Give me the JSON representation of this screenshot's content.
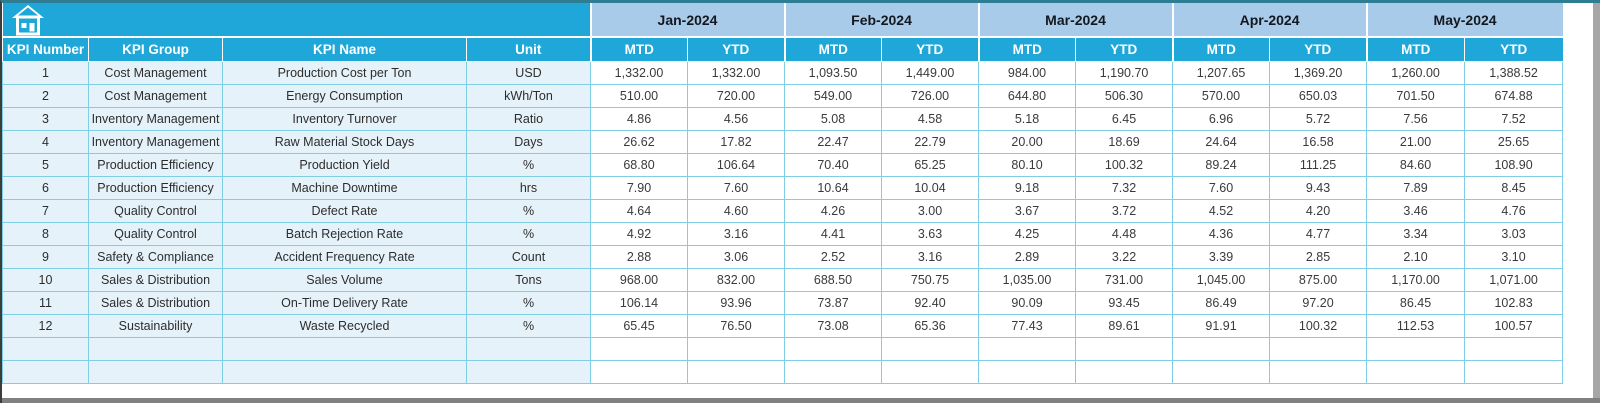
{
  "app": {
    "type": "spreadsheet-kpi-dashboard",
    "home_icon": "home-icon"
  },
  "colors": {
    "header_cyan": "#1ea7d8",
    "month_header_blue": "#a8cbea",
    "row_tint_blue": "#e6f2f9",
    "cell_border_cyan": "#7ecfe6",
    "header_text": "#ffffff",
    "data_text": "#3a3a3a",
    "frame_top": "#2f7d93",
    "frame_bottom_gray": "#808080"
  },
  "columns": {
    "kpi_number": "KPI Number",
    "kpi_group": "KPI Group",
    "kpi_name": "KPI Name",
    "unit": "Unit",
    "mtd": "MTD",
    "ytd": "YTD"
  },
  "months": [
    "Jan-2024",
    "Feb-2024",
    "Mar-2024",
    "Apr-2024",
    "May-2024"
  ],
  "rows": [
    {
      "number": "1",
      "group": "Cost Management",
      "name": "Production Cost per Ton",
      "unit": "USD",
      "values": [
        "1,332.00",
        "1,332.00",
        "1,093.50",
        "1,449.00",
        "984.00",
        "1,190.70",
        "1,207.65",
        "1,369.20",
        "1,260.00",
        "1,388.52"
      ]
    },
    {
      "number": "2",
      "group": "Cost Management",
      "name": "Energy Consumption",
      "unit": "kWh/Ton",
      "values": [
        "510.00",
        "720.00",
        "549.00",
        "726.00",
        "644.80",
        "506.30",
        "570.00",
        "650.03",
        "701.50",
        "674.88"
      ]
    },
    {
      "number": "3",
      "group": "Inventory Management",
      "name": "Inventory Turnover",
      "unit": "Ratio",
      "values": [
        "4.86",
        "4.56",
        "5.08",
        "4.58",
        "5.18",
        "6.45",
        "6.96",
        "5.72",
        "7.56",
        "7.52"
      ]
    },
    {
      "number": "4",
      "group": "Inventory Management",
      "name": "Raw Material Stock Days",
      "unit": "Days",
      "values": [
        "26.62",
        "17.82",
        "22.47",
        "22.79",
        "20.00",
        "18.69",
        "24.64",
        "16.58",
        "21.00",
        "25.65"
      ]
    },
    {
      "number": "5",
      "group": "Production Efficiency",
      "name": "Production Yield",
      "unit": "%",
      "values": [
        "68.80",
        "106.64",
        "70.40",
        "65.25",
        "80.10",
        "100.32",
        "89.24",
        "111.25",
        "84.60",
        "108.90"
      ]
    },
    {
      "number": "6",
      "group": "Production Efficiency",
      "name": "Machine Downtime",
      "unit": "hrs",
      "values": [
        "7.90",
        "7.60",
        "10.64",
        "10.04",
        "9.18",
        "7.32",
        "7.60",
        "9.43",
        "7.89",
        "8.45"
      ]
    },
    {
      "number": "7",
      "group": "Quality Control",
      "name": "Defect Rate",
      "unit": "%",
      "values": [
        "4.64",
        "4.60",
        "4.26",
        "3.00",
        "3.67",
        "3.72",
        "4.52",
        "4.20",
        "3.46",
        "4.76"
      ]
    },
    {
      "number": "8",
      "group": "Quality Control",
      "name": "Batch Rejection Rate",
      "unit": "%",
      "values": [
        "4.92",
        "3.16",
        "4.41",
        "3.63",
        "4.25",
        "4.48",
        "4.36",
        "4.77",
        "3.34",
        "3.03"
      ]
    },
    {
      "number": "9",
      "group": "Safety & Compliance",
      "name": "Accident Frequency Rate",
      "unit": "Count",
      "values": [
        "2.88",
        "3.06",
        "2.52",
        "3.16",
        "2.89",
        "3.22",
        "3.39",
        "2.85",
        "2.10",
        "3.10"
      ]
    },
    {
      "number": "10",
      "group": "Sales & Distribution",
      "name": "Sales Volume",
      "unit": "Tons",
      "values": [
        "968.00",
        "832.00",
        "688.50",
        "750.75",
        "1,035.00",
        "731.00",
        "1,045.00",
        "875.00",
        "1,170.00",
        "1,071.00"
      ]
    },
    {
      "number": "11",
      "group": "Sales & Distribution",
      "name": "On-Time Delivery Rate",
      "unit": "%",
      "values": [
        "106.14",
        "93.96",
        "73.87",
        "92.40",
        "90.09",
        "93.45",
        "86.49",
        "97.20",
        "86.45",
        "102.83"
      ]
    },
    {
      "number": "12",
      "group": "Sustainability",
      "name": "Waste Recycled",
      "unit": "%",
      "values": [
        "65.45",
        "76.50",
        "73.08",
        "65.36",
        "77.43",
        "89.61",
        "91.91",
        "100.32",
        "112.53",
        "100.57"
      ]
    }
  ],
  "empty_row_count": 2
}
